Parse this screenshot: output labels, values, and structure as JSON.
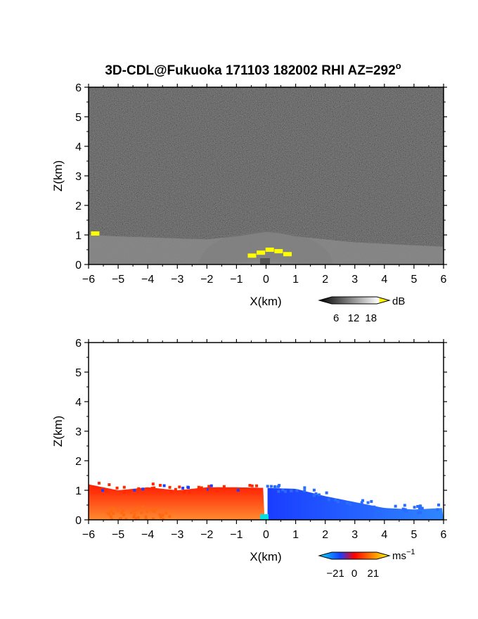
{
  "title": "3D-CDL@Fukuoka 171103 182002 RHI AZ=292",
  "title_superscript": "o",
  "chart_data": [
    {
      "type": "heatmap",
      "panel": "top",
      "quantity_unit": "dB",
      "xlabel": "X(km)",
      "ylabel": "Z(km)",
      "xlim": [
        -6,
        6
      ],
      "ylim": [
        0,
        6
      ],
      "xticks": [
        -6,
        -5,
        -4,
        -3,
        -2,
        -1,
        0,
        1,
        2,
        3,
        4,
        5,
        6
      ],
      "yticks": [
        0,
        1,
        2,
        3,
        4,
        5,
        6
      ],
      "colormap": "grayscale-to-yellow",
      "colorbar": {
        "ticks": [
          6,
          12,
          18
        ],
        "unit": "dB",
        "placement": "bottom-right"
      },
      "echo_top_km": [
        {
          "x": -6.0,
          "z": 1.0
        },
        {
          "x": -5.0,
          "z": 0.95
        },
        {
          "x": -4.0,
          "z": 0.92
        },
        {
          "x": -3.0,
          "z": 0.88
        },
        {
          "x": -2.0,
          "z": 0.85
        },
        {
          "x": -1.0,
          "z": 0.95
        },
        {
          "x": 0.0,
          "z": 1.1
        },
        {
          "x": 0.5,
          "z": 1.05
        },
        {
          "x": 1.0,
          "z": 0.95
        },
        {
          "x": 2.0,
          "z": 0.85
        },
        {
          "x": 3.0,
          "z": 0.75
        },
        {
          "x": 4.0,
          "z": 0.7
        },
        {
          "x": 5.0,
          "z": 0.65
        },
        {
          "x": 6.0,
          "z": 0.6
        }
      ],
      "strong_echo": [
        {
          "x": -5.8,
          "z": 1.05
        },
        {
          "x": -0.5,
          "z": 0.3
        },
        {
          "x": -0.2,
          "z": 0.4
        },
        {
          "x": 0.1,
          "z": 0.5
        },
        {
          "x": 0.4,
          "z": 0.45
        },
        {
          "x": 0.7,
          "z": 0.35
        }
      ]
    },
    {
      "type": "heatmap",
      "panel": "bottom",
      "quantity_unit": "ms",
      "quantity_unit_superscript": "−1",
      "xlabel": "X(km)",
      "ylabel": "Z(km)",
      "xlim": [
        -6,
        6
      ],
      "ylim": [
        0,
        6
      ],
      "xticks": [
        -6,
        -5,
        -4,
        -3,
        -2,
        -1,
        0,
        1,
        2,
        3,
        4,
        5,
        6
      ],
      "yticks": [
        0,
        1,
        2,
        3,
        4,
        5,
        6
      ],
      "colormap": "cyan-blue-red-yellow",
      "colorbar": {
        "ticks": [
          -21,
          0,
          21
        ],
        "unit": "ms",
        "placement": "bottom-right"
      },
      "velocity_field": [
        {
          "x_from": -6.0,
          "x_to": -0.05,
          "z_top": 1.1,
          "sign": "positive",
          "color": "#ff2a00"
        },
        {
          "x_from": 0.05,
          "x_to": 6.0,
          "z_top": 1.0,
          "sign": "negative",
          "color": "#1f4dff"
        }
      ],
      "echo_top_km": [
        {
          "x": -6.0,
          "z": 1.2
        },
        {
          "x": -5.0,
          "z": 1.0
        },
        {
          "x": -4.0,
          "z": 1.1
        },
        {
          "x": -3.0,
          "z": 1.0
        },
        {
          "x": -2.0,
          "z": 1.1
        },
        {
          "x": -1.0,
          "z": 1.1
        },
        {
          "x": 0.0,
          "z": 1.08
        },
        {
          "x": 1.0,
          "z": 1.05
        },
        {
          "x": 2.0,
          "z": 0.8
        },
        {
          "x": 3.0,
          "z": 0.6
        },
        {
          "x": 4.0,
          "z": 0.4
        },
        {
          "x": 5.0,
          "z": 0.35
        },
        {
          "x": 6.0,
          "z": 0.4
        }
      ]
    }
  ]
}
